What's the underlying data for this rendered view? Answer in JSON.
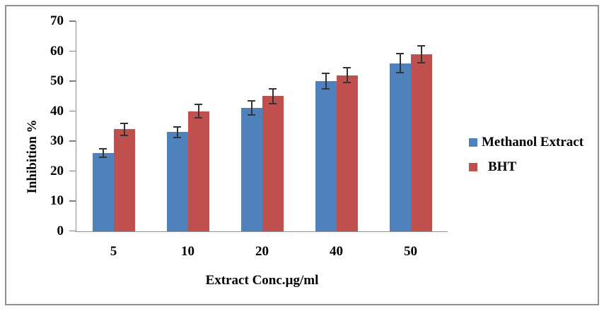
{
  "figure": {
    "background": "#ffffff",
    "border_color": "#8f8f8f"
  },
  "chart_data": {
    "type": "bar",
    "title": "",
    "xlabel": "Extract Conc.µg/ml",
    "ylabel": "Inhibition %",
    "categories": [
      "5",
      "10",
      "20",
      "40",
      "50"
    ],
    "series": [
      {
        "name": "Methanol Extract",
        "color": "#4F81BD",
        "values": [
          26,
          33,
          41,
          50,
          56
        ],
        "errors": [
          1.5,
          1.8,
          2.3,
          2.5,
          3.2
        ]
      },
      {
        "name": "BHT",
        "color": "#C0504D",
        "values": [
          34,
          40,
          45,
          52,
          59
        ],
        "errors": [
          2.0,
          2.3,
          2.5,
          2.5,
          2.8
        ]
      }
    ],
    "ylim": [
      0,
      70
    ],
    "yticks": [
      0,
      10,
      20,
      30,
      40,
      50,
      60,
      70
    ],
    "grid": false,
    "legend_position": "right",
    "axis_color": "#8e8e8e",
    "error_bar_color": "#333333"
  }
}
